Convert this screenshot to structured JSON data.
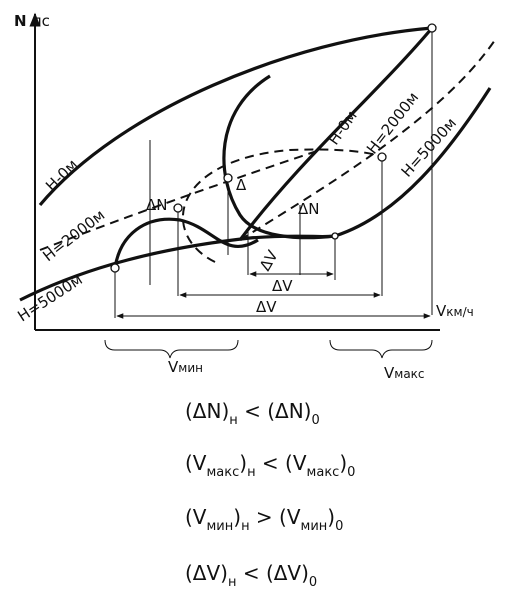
{
  "axes": {
    "y_label": "N",
    "y_unit": "лс",
    "x_label": "V",
    "x_unit": "км/ч"
  },
  "curve_labels": [
    "H-0м",
    "H=2000м",
    "H=5000м",
    "H-0м",
    "H=2000м",
    "H=5000м"
  ],
  "delta_labels": [
    "ΔN",
    "ΔN",
    "Δ",
    "ΔV",
    "ΔV",
    "ΔV"
  ],
  "ranges": [
    {
      "label": "V",
      "sub": "мин"
    },
    {
      "label": "V",
      "sub": "макс"
    }
  ],
  "formulas": [
    {
      "parts": [
        {
          "t": "(ΔN)"
        },
        {
          "sub": "н"
        },
        {
          "t": "  <  (ΔN)"
        },
        {
          "sub": "0"
        }
      ]
    },
    {
      "parts": [
        {
          "t": "(V"
        },
        {
          "sub": "макс"
        },
        {
          "t": ")"
        },
        {
          "sub": "н"
        },
        {
          "t": " < (V"
        },
        {
          "sub": "макс"
        },
        {
          "t": ")"
        },
        {
          "sub": "0"
        }
      ]
    },
    {
      "parts": [
        {
          "t": "(V"
        },
        {
          "sub": "мин"
        },
        {
          "t": ")"
        },
        {
          "sub": "н"
        },
        {
          "t": " > (V"
        },
        {
          "sub": "мин"
        },
        {
          "t": ")"
        },
        {
          "sub": "0"
        }
      ]
    },
    {
      "parts": [
        {
          "t": "(ΔV)"
        },
        {
          "sub": "н"
        },
        {
          "t": "  <  (ΔV)"
        },
        {
          "sub": "0"
        }
      ]
    }
  ]
}
